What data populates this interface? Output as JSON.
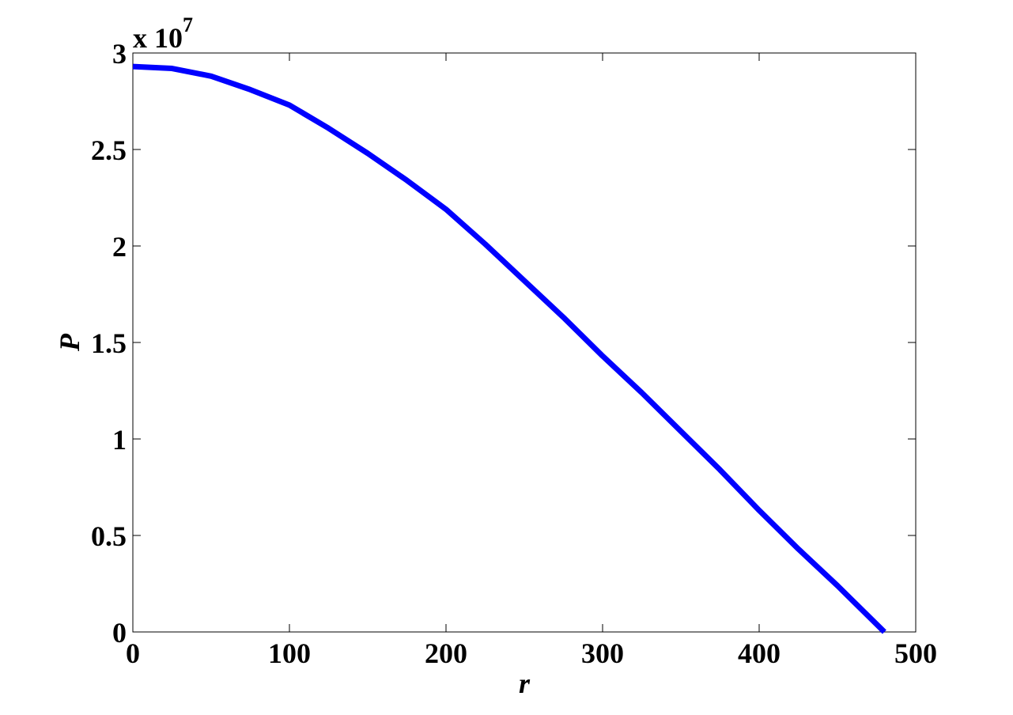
{
  "chart_data": {
    "type": "line",
    "x_label": "r",
    "y_label": "P",
    "y_multiplier": "x 10",
    "y_exponent": "7",
    "x": [
      0,
      25,
      50,
      75,
      100,
      125,
      150,
      175,
      200,
      225,
      250,
      275,
      300,
      325,
      350,
      375,
      400,
      425,
      450,
      460,
      480
    ],
    "series": [
      {
        "color": "#0000ff",
        "values": [
          2.93,
          2.92,
          2.88,
          2.81,
          2.73,
          2.61,
          2.48,
          2.34,
          2.19,
          2.01,
          1.82,
          1.63,
          1.43,
          1.24,
          1.04,
          0.84,
          0.63,
          0.43,
          0.24,
          0.16,
          0
        ]
      }
    ],
    "xlim": [
      0,
      500
    ],
    "xticks": [
      0,
      100,
      200,
      300,
      400,
      500
    ],
    "ylim": [
      0,
      3
    ],
    "yticks": [
      0,
      0.5,
      1,
      1.5,
      2,
      2.5,
      3
    ]
  }
}
